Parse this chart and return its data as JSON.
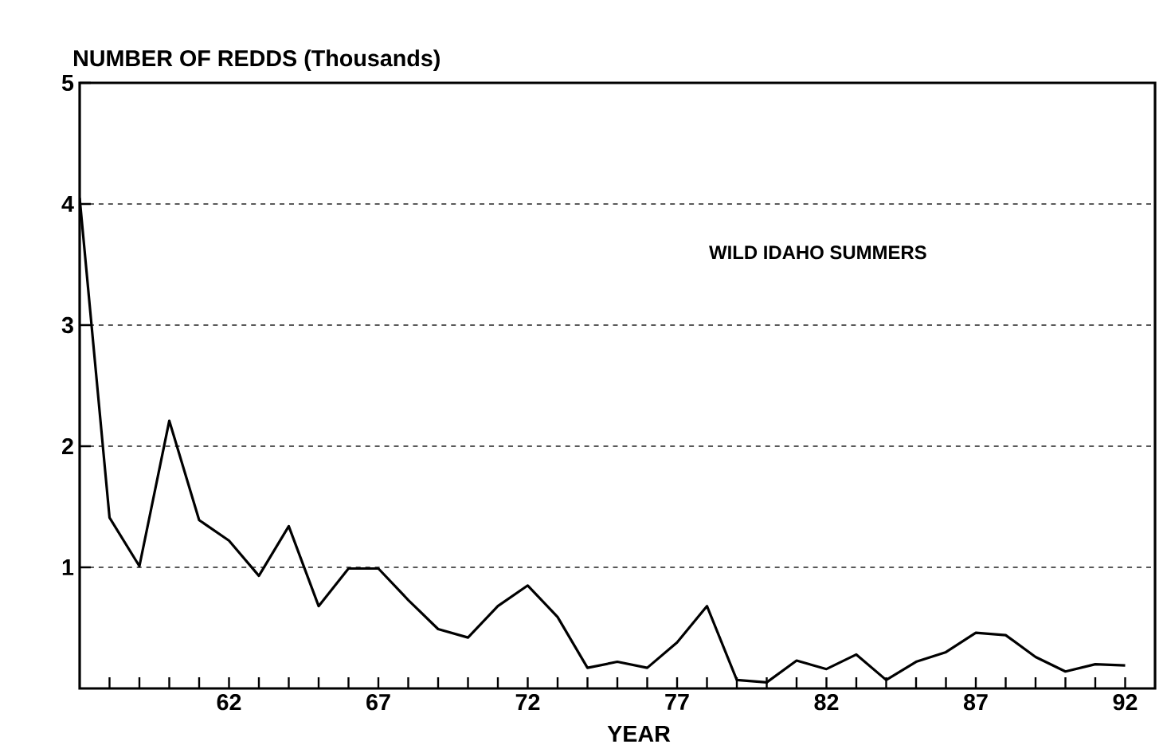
{
  "chart_data": {
    "type": "line",
    "ylabel": "NUMBER OF REDDS (Thousands)",
    "xlabel": "YEAR",
    "annotations": [
      "WILD IDAHO SUMMERS"
    ],
    "x": [
      57,
      58,
      59,
      60,
      61,
      62,
      63,
      64,
      65,
      66,
      67,
      68,
      69,
      70,
      71,
      72,
      73,
      74,
      75,
      76,
      77,
      78,
      79,
      80,
      81,
      82,
      83,
      84,
      85,
      86,
      87,
      88,
      89,
      90,
      91,
      92
    ],
    "series": [
      {
        "color": "#000000",
        "values": [
          4.05,
          1.41,
          1.01,
          2.21,
          1.39,
          1.22,
          0.93,
          1.34,
          0.68,
          0.99,
          0.99,
          0.73,
          0.49,
          0.42,
          0.68,
          0.85,
          0.59,
          0.17,
          0.22,
          0.17,
          0.38,
          0.68,
          0.07,
          0.05,
          0.23,
          0.16,
          0.28,
          0.07,
          0.22,
          0.3,
          0.46,
          0.44,
          0.26,
          0.14,
          0.2,
          0.19
        ]
      }
    ],
    "xlim": [
      57,
      93
    ],
    "ylim": [
      0,
      5
    ],
    "xticks": [
      {
        "value": 58,
        "label": null
      },
      {
        "value": 59,
        "label": null
      },
      {
        "value": 60,
        "label": null
      },
      {
        "value": 61,
        "label": null
      },
      62,
      {
        "value": 63,
        "label": null
      },
      {
        "value": 64,
        "label": null
      },
      {
        "value": 65,
        "label": null
      },
      {
        "value": 66,
        "label": null
      },
      67,
      {
        "value": 68,
        "label": null
      },
      {
        "value": 69,
        "label": null
      },
      {
        "value": 70,
        "label": null
      },
      {
        "value": 71,
        "label": null
      },
      72,
      {
        "value": 73,
        "label": null
      },
      {
        "value": 74,
        "label": null
      },
      {
        "value": 75,
        "label": null
      },
      {
        "value": 76,
        "label": null
      },
      77,
      {
        "value": 78,
        "label": null
      },
      {
        "value": 79,
        "label": null
      },
      {
        "value": 80,
        "label": null
      },
      {
        "value": 81,
        "label": null
      },
      82,
      {
        "value": 83,
        "label": null
      },
      {
        "value": 84,
        "label": null
      },
      {
        "value": 85,
        "label": null
      },
      {
        "value": 86,
        "label": null
      },
      87,
      {
        "value": 88,
        "label": null
      },
      {
        "value": 89,
        "label": null
      },
      {
        "value": 90,
        "label": null
      },
      {
        "value": 91,
        "label": null
      },
      92
    ],
    "yticks": [
      1,
      2,
      3,
      4,
      5
    ],
    "grid": "y",
    "marker": "none",
    "line_style": "solid"
  }
}
